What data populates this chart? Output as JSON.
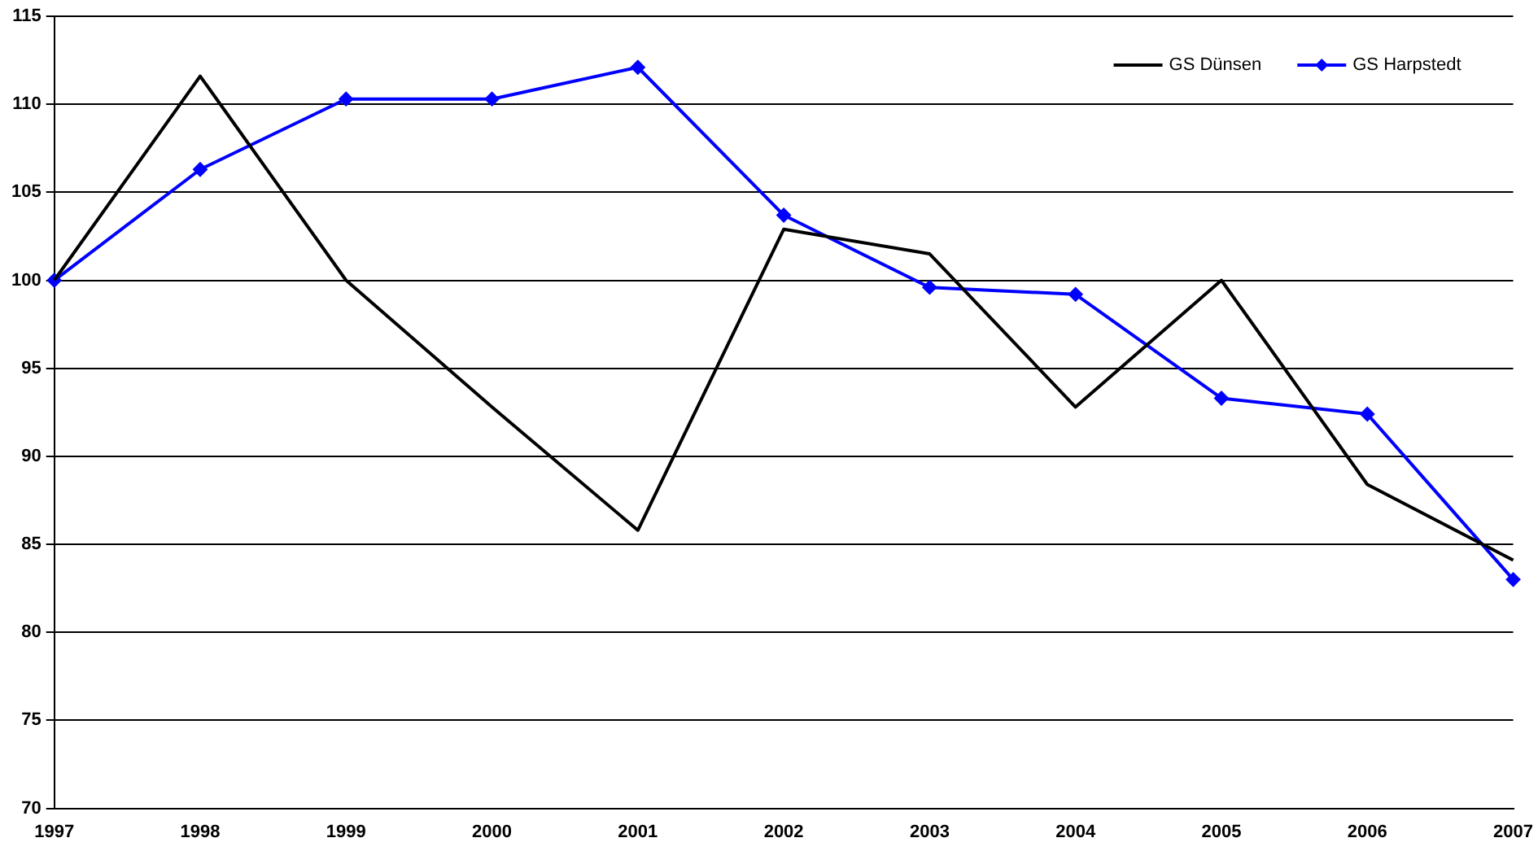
{
  "chart_data": {
    "type": "line",
    "categories": [
      "1997",
      "1998",
      "1999",
      "2000",
      "2001",
      "2002",
      "2003",
      "2004",
      "2005",
      "2006",
      "2007"
    ],
    "series": [
      {
        "name": "GS Dünsen",
        "color": "#000000",
        "marker": "none",
        "values": [
          100,
          111.6,
          100,
          92.8,
          85.8,
          102.9,
          101.5,
          92.8,
          100,
          88.4,
          84.1
        ]
      },
      {
        "name": "GS Harpstedt",
        "color": "#0000ff",
        "marker": "diamond",
        "values": [
          100,
          106.3,
          110.3,
          110.3,
          112.1,
          103.7,
          99.6,
          99.2,
          93.3,
          92.4,
          83.0
        ]
      }
    ],
    "ylim": [
      70,
      115
    ],
    "yticks": [
      70,
      75,
      80,
      85,
      90,
      95,
      100,
      105,
      110,
      115
    ],
    "grid": "y",
    "legend": "top right",
    "line_style": "solid"
  }
}
